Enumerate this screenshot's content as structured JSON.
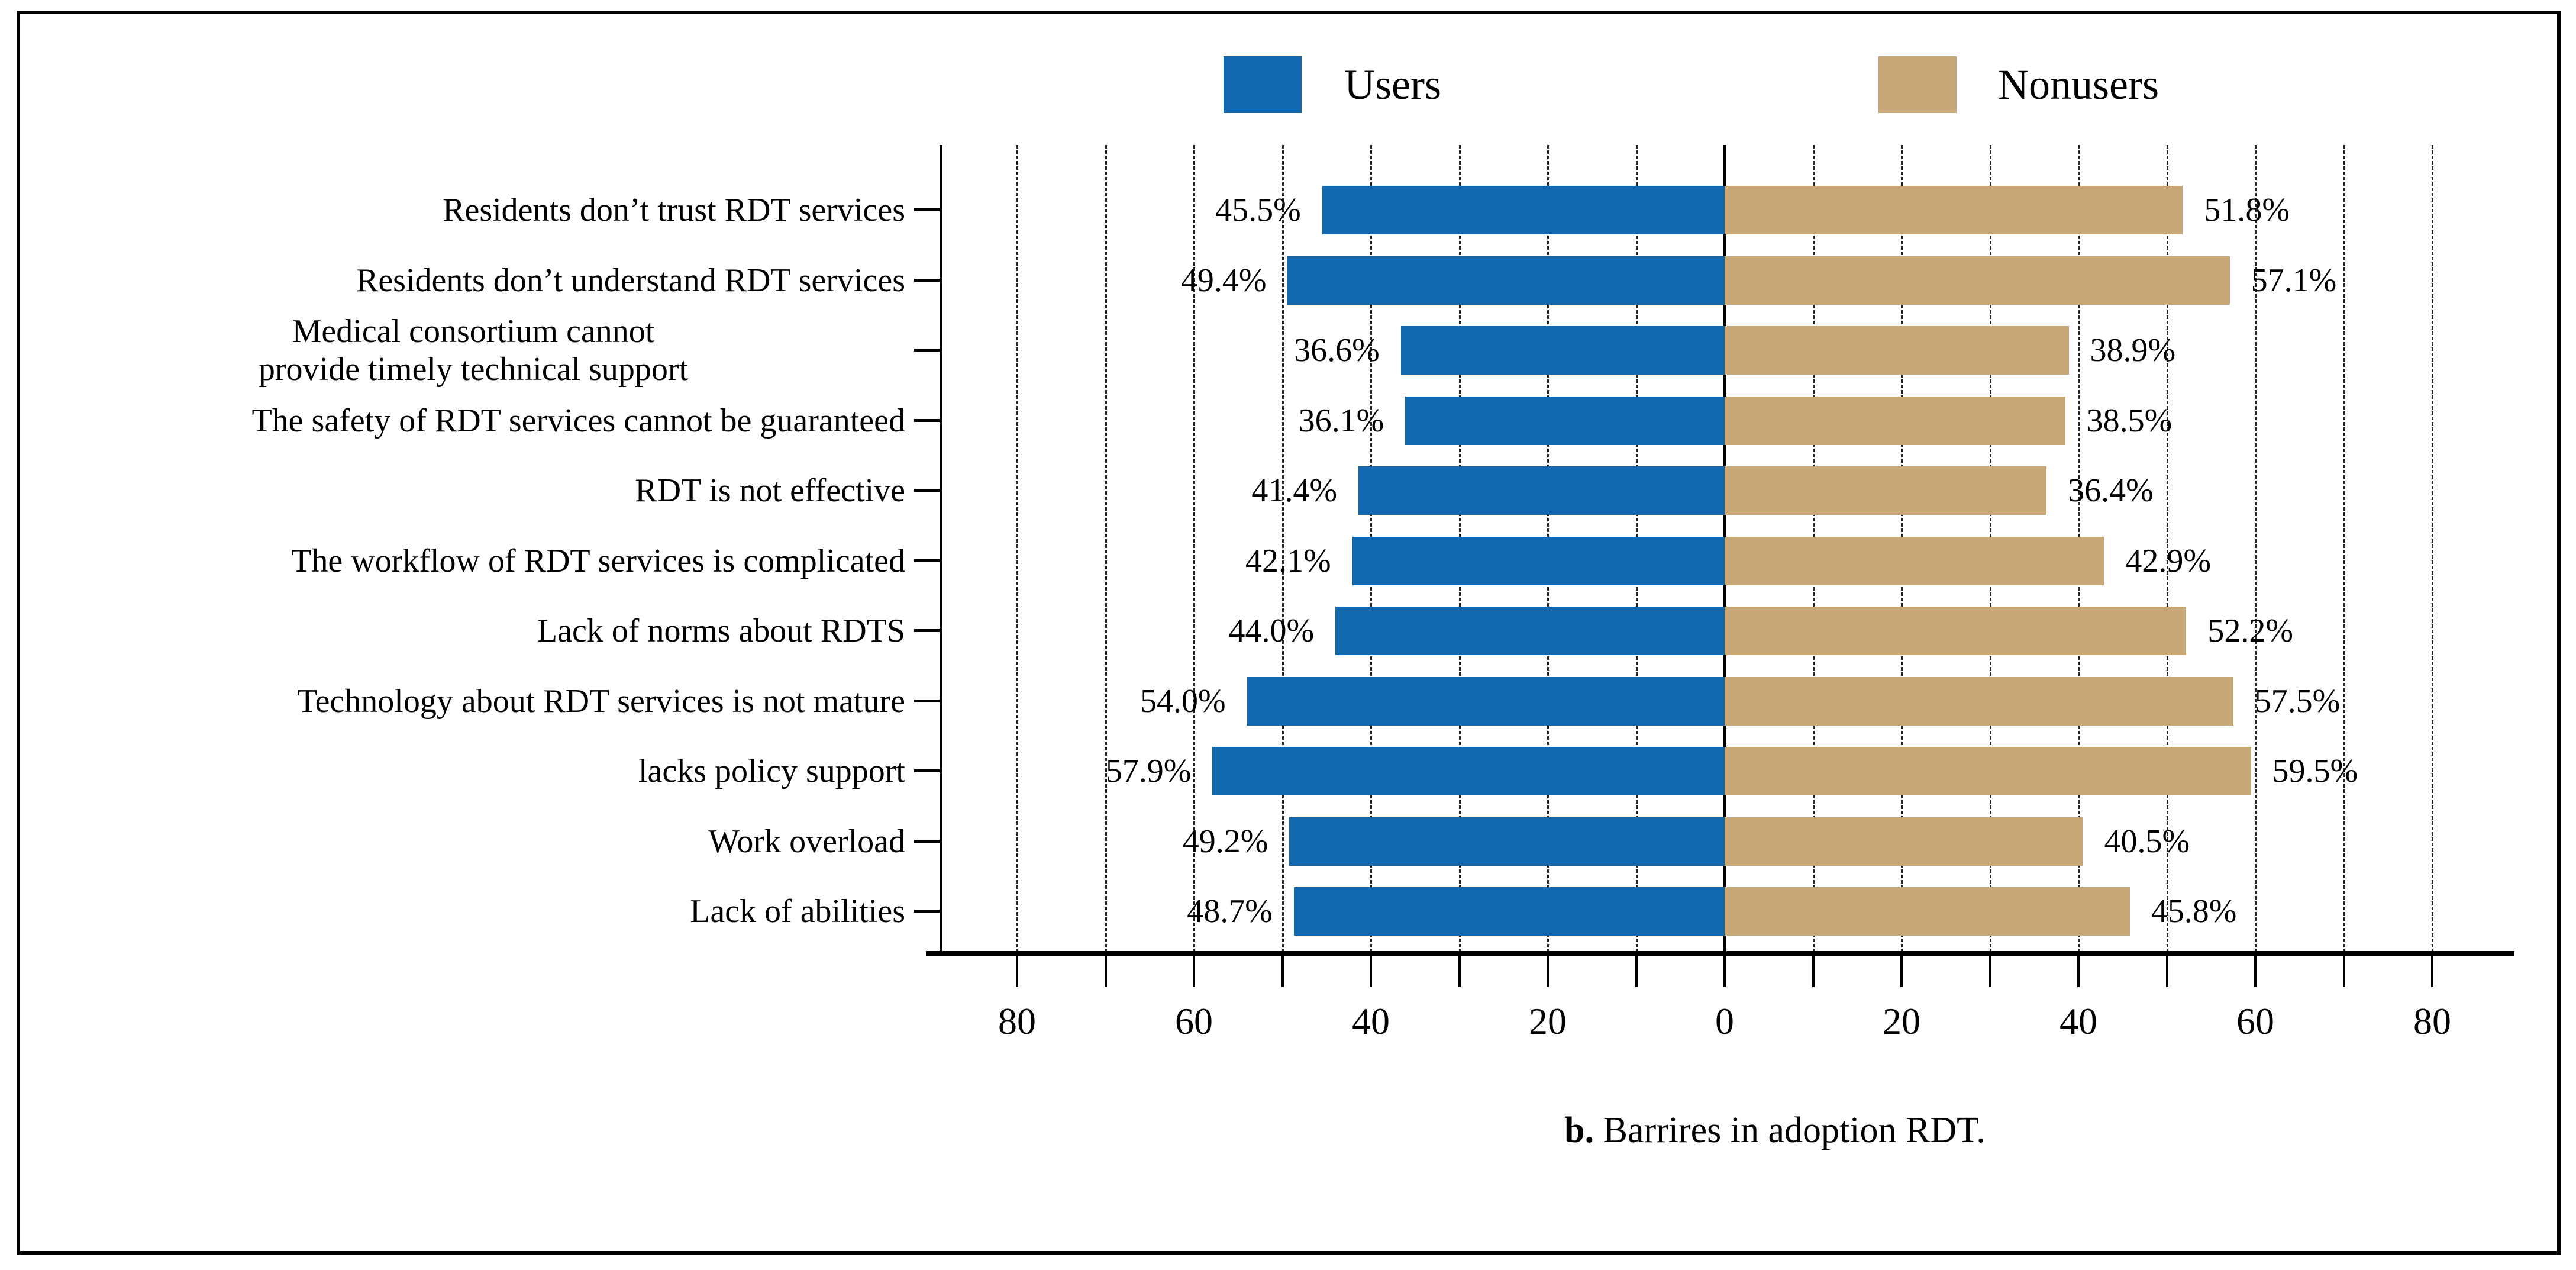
{
  "figure": {
    "caption_prefix": "b.",
    "caption_text": " Barrires in adoption RDT."
  },
  "legend": {
    "items": [
      {
        "label": "Users",
        "color": "#1268AE"
      },
      {
        "label": "Nonusers",
        "color": "#C9A878"
      }
    ]
  },
  "chart_data": {
    "type": "bar",
    "variant": "diverging-horizontal",
    "title": "",
    "caption": "b. Barrires in adoption RDT.",
    "value_suffix": "%",
    "categories": [
      "Residents don’t trust RDT services",
      "Residents don’t understand RDT services",
      "Medical consortium cannot\nprovide timely technical support",
      "The safety of RDT services cannot be guaranteed",
      "RDT is not effective",
      "The workflow of RDT services is complicated",
      "Lack of norms about RDTS",
      "Technology about RDT services is not mature",
      "lacks policy support",
      "Work overload",
      "Lack of abilities"
    ],
    "series": [
      {
        "name": "Users",
        "side": "left",
        "color": "#1268AE",
        "values": [
          45.5,
          49.4,
          36.6,
          36.1,
          41.4,
          42.1,
          44.0,
          54.0,
          57.9,
          49.2,
          48.7
        ]
      },
      {
        "name": "Nonusers",
        "side": "right",
        "color": "#C9A878",
        "values": [
          51.8,
          57.1,
          38.9,
          38.5,
          36.4,
          42.9,
          52.2,
          57.5,
          59.5,
          40.5,
          45.8
        ]
      }
    ],
    "axis": {
      "tick_label_values": [
        80,
        60,
        40,
        20,
        0,
        20,
        40,
        60,
        80
      ],
      "minor_tick_step": 10,
      "max_each_side": 90,
      "gridlines_every": 10,
      "grid_style": "dashed",
      "zero_line": "solid"
    },
    "legend_position": "top-center",
    "grid": true
  }
}
